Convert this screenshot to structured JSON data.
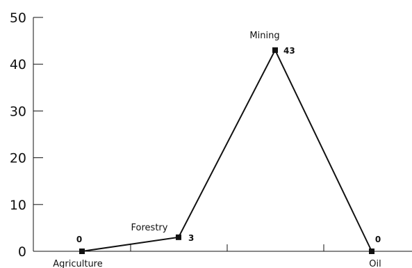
{
  "chart_data": {
    "type": "line",
    "categories": [
      "Agriculture",
      "Forestry",
      "Mining",
      "Oil"
    ],
    "values": [
      0,
      3,
      43,
      0
    ],
    "data_labels": [
      "0",
      "3",
      "43",
      "0"
    ],
    "y_ticks": [
      0,
      10,
      20,
      30,
      40,
      50
    ],
    "y_tick_labels": [
      "0",
      "10",
      "20",
      "30",
      "40",
      "50"
    ],
    "ylim": [
      0,
      50
    ],
    "grid": false,
    "legend": "none",
    "title": "",
    "xlabel": "",
    "ylabel": "",
    "line_color": "#111111"
  }
}
